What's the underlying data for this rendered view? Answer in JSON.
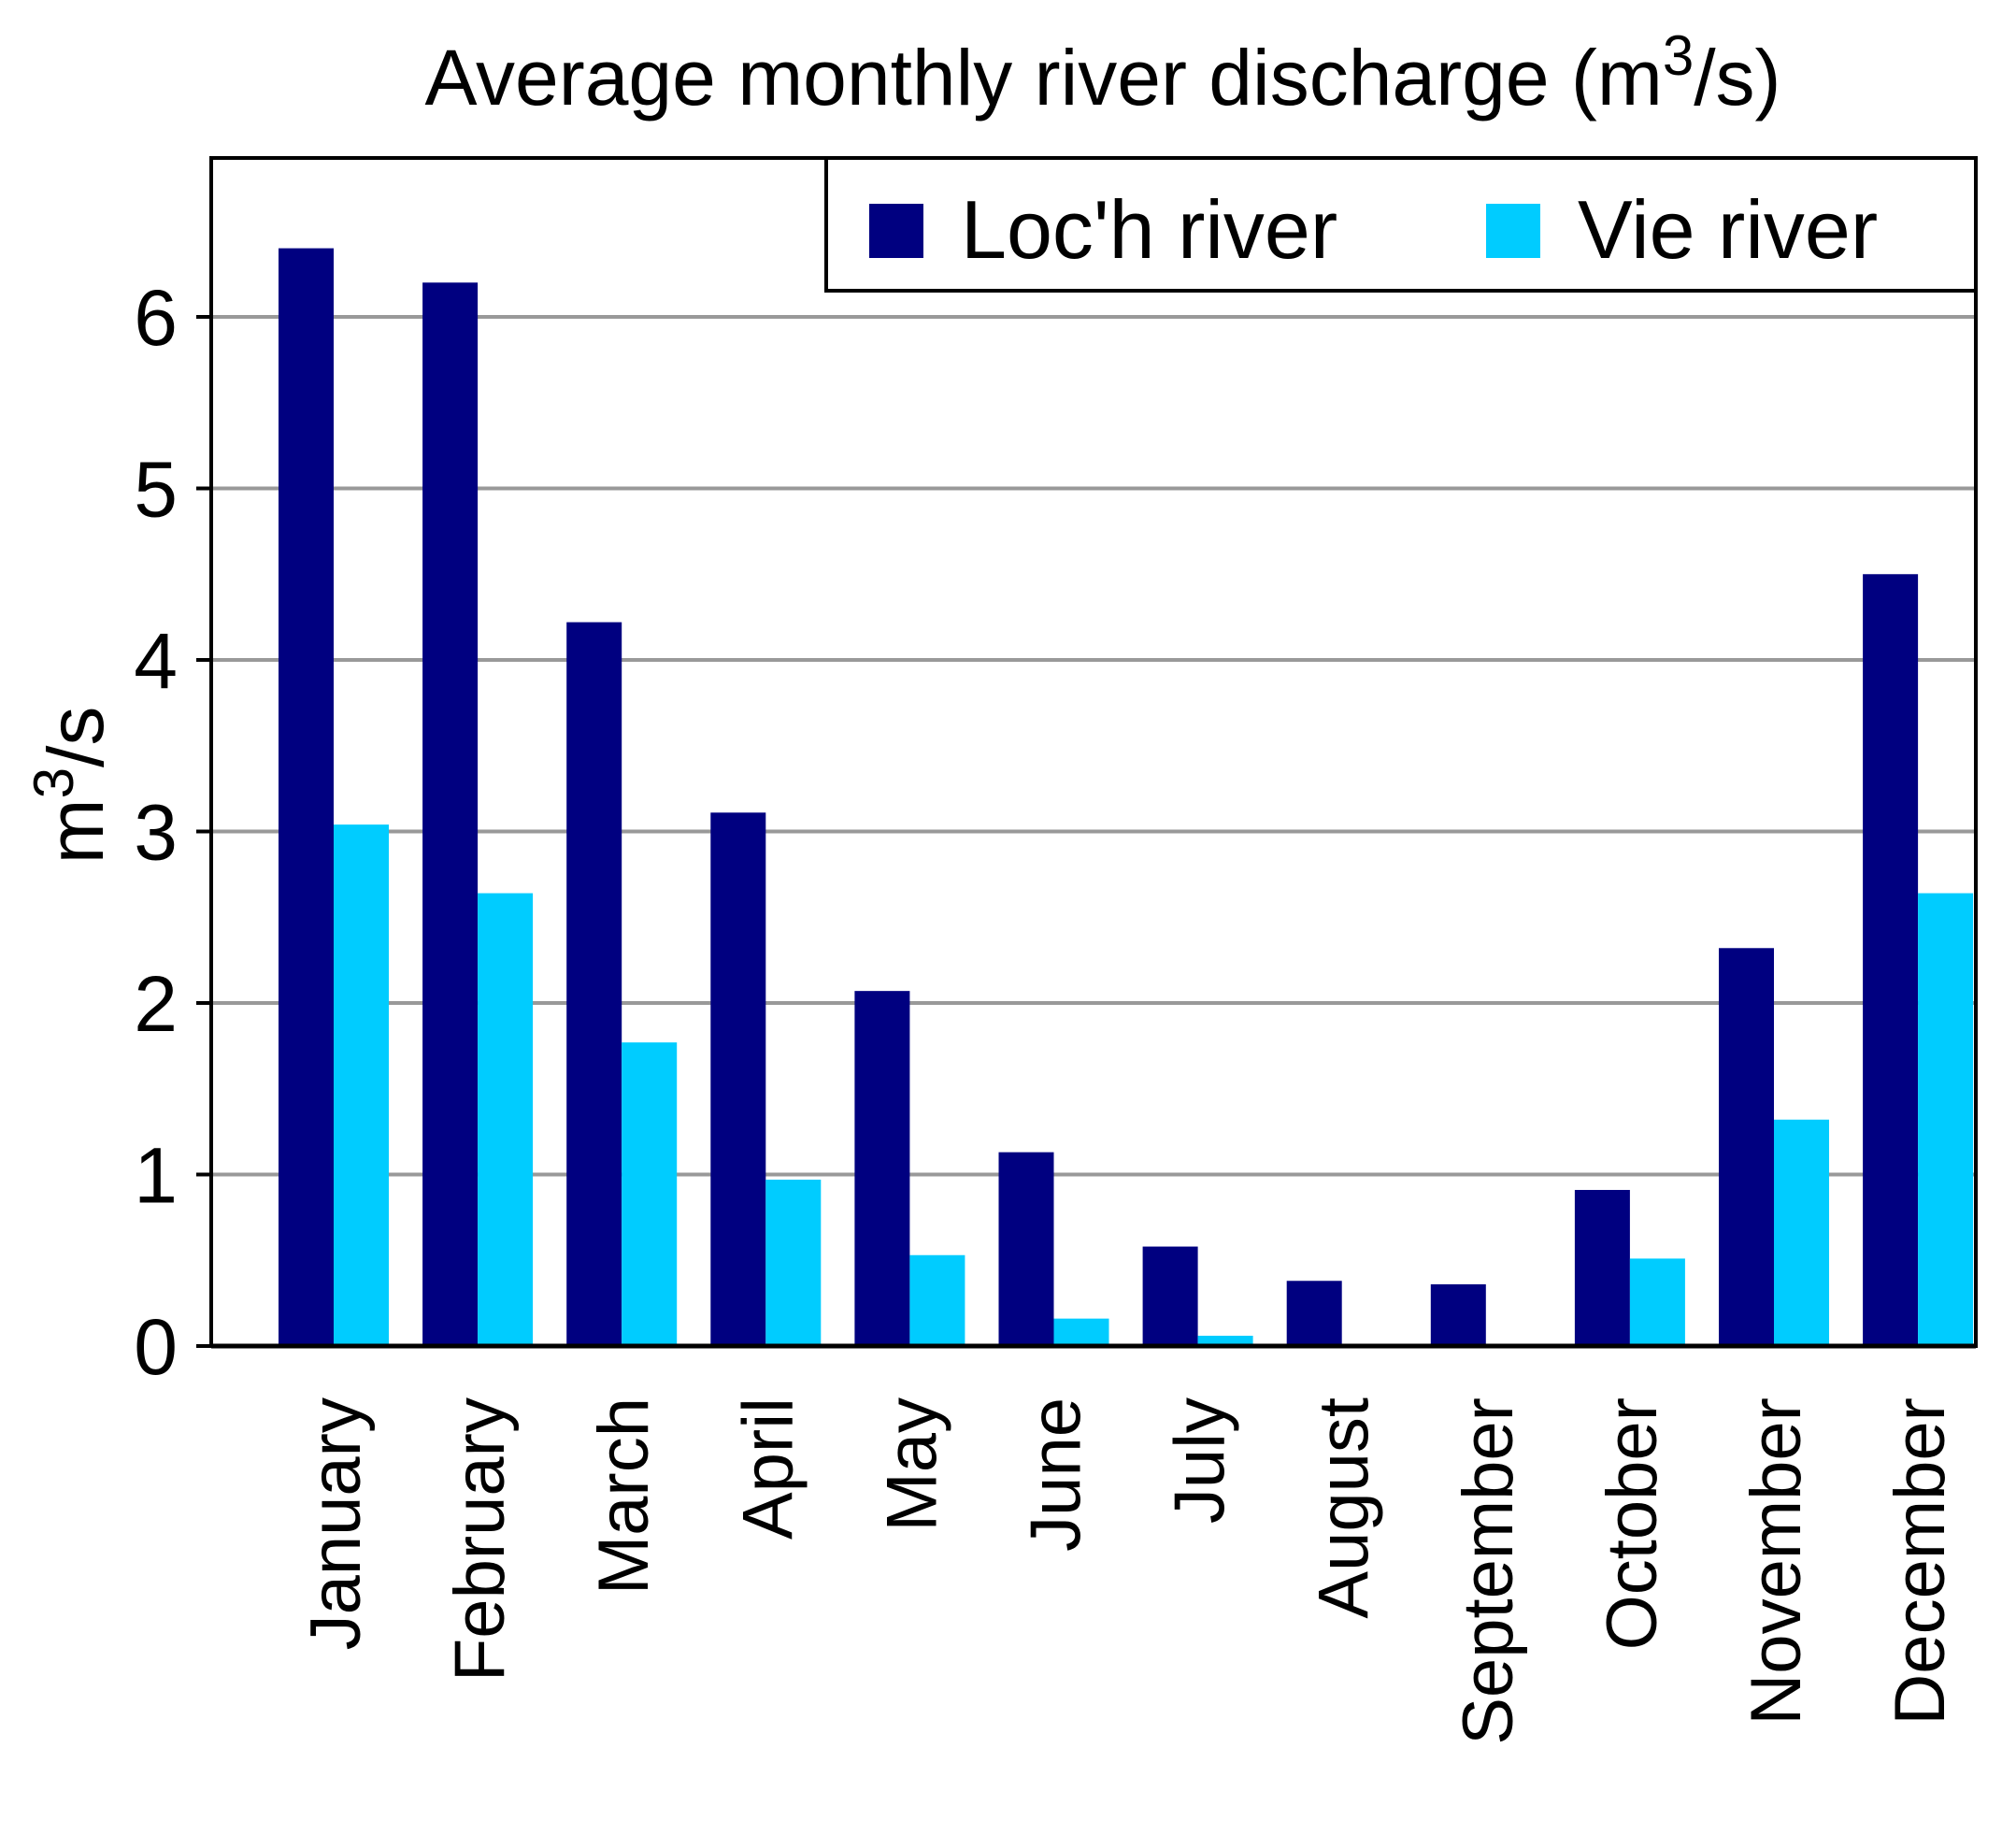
{
  "chart_data": {
    "type": "bar",
    "title_prefix": "Average monthly river discharge (m",
    "title_sup": "3",
    "title_suffix": "/s)",
    "ylabel_prefix": "m",
    "ylabel_sup": "3",
    "ylabel_suffix": "/s",
    "xlabel": "",
    "ylim": [
      0,
      6.9
    ],
    "yticks": [
      "0",
      "1",
      "2",
      "3",
      "4",
      "5",
      "6"
    ],
    "grid": true,
    "legend_position": "top-right",
    "categories": [
      "January",
      "February",
      "March",
      "April",
      "May",
      "June",
      "July",
      "August",
      "September",
      "October",
      "November",
      "December"
    ],
    "series": [
      {
        "name": "Loc'h river",
        "color": "#000080",
        "values": [
          6.4,
          6.2,
          4.22,
          3.11,
          2.07,
          1.13,
          0.58,
          0.38,
          0.36,
          0.91,
          2.32,
          4.5
        ]
      },
      {
        "name": "Vie river",
        "color": "#00CCFF",
        "values": [
          3.04,
          2.64,
          1.77,
          0.97,
          0.53,
          0.16,
          0.06,
          0.01,
          0.01,
          0.51,
          1.32,
          2.64
        ]
      }
    ]
  }
}
